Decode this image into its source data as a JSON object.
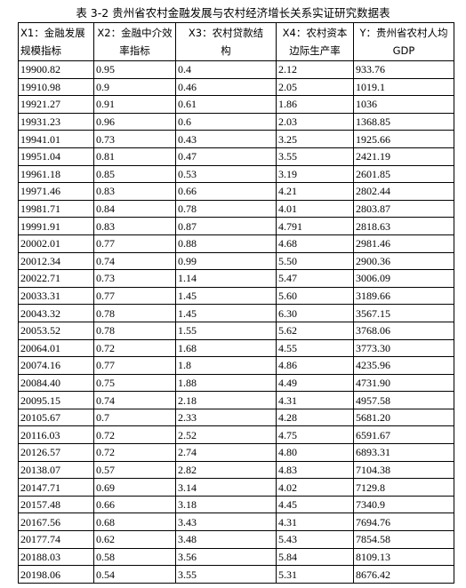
{
  "title": "表 3-2 贵州省农村金融发展与农村经济增长关系实证研究数据表",
  "table": {
    "headers": [
      [
        "X1：金融发展",
        "规模指标"
      ],
      [
        "X2：金融中介效",
        "率指标"
      ],
      [
        "X3：农村贷款结",
        "构"
      ],
      [
        "X4：农村资本",
        "边际生产率"
      ],
      [
        "Y：贵州省农村人均",
        "GDP"
      ]
    ],
    "rows": [
      [
        "19900.82",
        "0.95",
        "0.4",
        "2.12",
        "933.76"
      ],
      [
        "19910.98",
        "0.9",
        "0.46",
        "2.05",
        "1019.1"
      ],
      [
        "19921.27",
        "0.91",
        "0.61",
        "1.86",
        "1036"
      ],
      [
        "19931.23",
        "0.96",
        "0.6",
        "2.03",
        "1368.85"
      ],
      [
        "19941.01",
        "0.73",
        "0.43",
        "3.25",
        "1925.66"
      ],
      [
        "19951.04",
        "0.81",
        "0.47",
        "3.55",
        "2421.19"
      ],
      [
        "19961.18",
        "0.85",
        "0.53",
        "3.19",
        "2601.85"
      ],
      [
        "19971.46",
        "0.83",
        "0.66",
        "4.21",
        "2802.44"
      ],
      [
        "19981.71",
        "0.84",
        "0.78",
        "4.01",
        "2803.87"
      ],
      [
        "19991.91",
        "0.83",
        "0.87",
        "4.791",
        "2818.63"
      ],
      [
        "20002.01",
        "0.77",
        "0.88",
        "4.68",
        "2981.46"
      ],
      [
        "20012.34",
        "0.74",
        "0.99",
        "5.50",
        "2900.36"
      ],
      [
        "20022.71",
        "0.73",
        "1.14",
        "5.47",
        "3006.09"
      ],
      [
        "20033.31",
        "0.77",
        "1.45",
        "5.60",
        "3189.66"
      ],
      [
        "20043.32",
        "0.78",
        "1.45",
        "6.30",
        "3567.15"
      ],
      [
        "20053.52",
        "0.78",
        "1.55",
        "5.62",
        "3768.06"
      ],
      [
        "20064.01",
        "0.72",
        "1.68",
        "4.55",
        "3773.30"
      ],
      [
        "20074.16",
        "0.77",
        "1.8",
        "4.86",
        "4235.96"
      ],
      [
        "20084.40",
        "0.75",
        "1.88",
        "4.49",
        "4731.90"
      ],
      [
        "20095.15",
        "0.74",
        "2.18",
        "4.31",
        "4957.58"
      ],
      [
        "20105.67",
        "0.7",
        "2.33",
        "4.28",
        "5681.20"
      ],
      [
        "20116.03",
        "0.72",
        "2.52",
        "4.75",
        "6591.67"
      ],
      [
        "20126.57",
        "0.72",
        "2.74",
        "4.80",
        "6893.31"
      ],
      [
        "20138.07",
        "0.57",
        "2.82",
        "4.83",
        "7104.38"
      ],
      [
        "20147.71",
        "0.69",
        "3.14",
        "4.02",
        "7129.8"
      ],
      [
        "20157.48",
        "0.66",
        "3.18",
        "4.45",
        "7340.9"
      ],
      [
        "20167.56",
        "0.68",
        "3.43",
        "4.31",
        "7694.76"
      ],
      [
        "20177.74",
        "0.62",
        "3.48",
        "5.43",
        "7854.58"
      ],
      [
        "20188.03",
        "0.58",
        "3.56",
        "5.84",
        "8109.13"
      ],
      [
        "20198.06",
        "0.54",
        "3.55",
        "5.31",
        "8676.42"
      ]
    ]
  }
}
